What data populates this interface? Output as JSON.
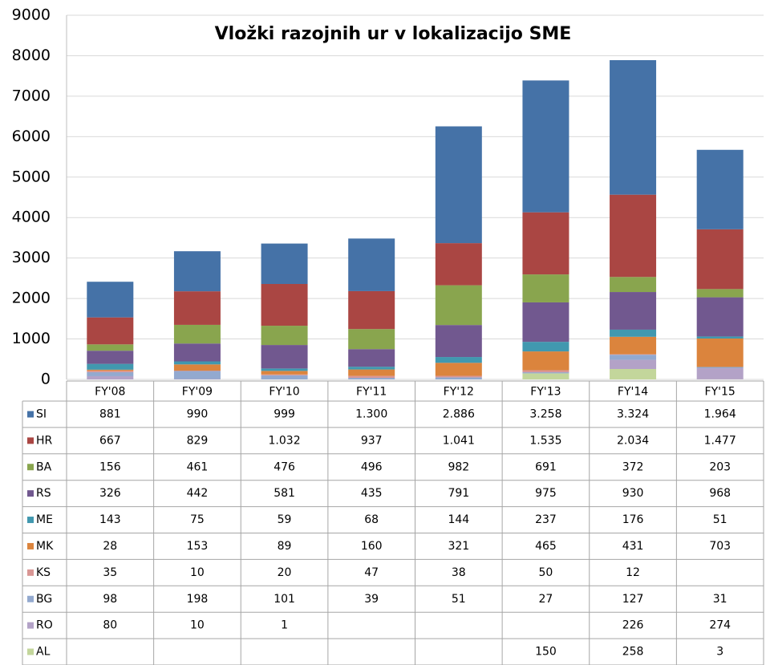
{
  "chart_data": {
    "type": "stacked_bar",
    "title": "Vložki razojnih ur v lokalizacijo SME",
    "categories": [
      "FY'08",
      "FY'09",
      "FY'10",
      "FY'11",
      "FY'12",
      "FY'13",
      "FY'14",
      "FY'15"
    ],
    "series": [
      {
        "name": "SI",
        "color": "#4572a7",
        "values": [
          881,
          990,
          999,
          1300,
          2886,
          3258,
          3324,
          1964
        ],
        "value_labels": [
          "881",
          "990",
          "999",
          "1.300",
          "2.886",
          "3.258",
          "3.324",
          "1.964"
        ]
      },
      {
        "name": "HR",
        "color": "#aa4643",
        "values": [
          667,
          829,
          1032,
          937,
          1041,
          1535,
          2034,
          1477
        ],
        "value_labels": [
          "667",
          "829",
          "1.032",
          "937",
          "1.041",
          "1.535",
          "2.034",
          "1.477"
        ]
      },
      {
        "name": "BA",
        "color": "#89a54e",
        "values": [
          156,
          461,
          476,
          496,
          982,
          691,
          372,
          203
        ]
      },
      {
        "name": "RS",
        "color": "#71588f",
        "values": [
          326,
          442,
          581,
          435,
          791,
          975,
          930,
          968
        ]
      },
      {
        "name": "ME",
        "color": "#4198af",
        "values": [
          143,
          75,
          59,
          68,
          144,
          237,
          176,
          51
        ]
      },
      {
        "name": "MK",
        "color": "#db843d",
        "values": [
          28,
          153,
          89,
          160,
          321,
          465,
          431,
          703
        ]
      },
      {
        "name": "KS",
        "color": "#d99694",
        "values": [
          35,
          10,
          20,
          47,
          38,
          50,
          12,
          null
        ]
      },
      {
        "name": "BG",
        "color": "#93a9cf",
        "values": [
          98,
          198,
          101,
          39,
          51,
          27,
          127,
          31
        ]
      },
      {
        "name": "RO",
        "color": "#b3a2c7",
        "values": [
          80,
          10,
          1,
          null,
          null,
          null,
          226,
          274
        ]
      },
      {
        "name": "AL",
        "color": "#c3d69b",
        "values": [
          null,
          null,
          null,
          null,
          null,
          150,
          258,
          3
        ]
      }
    ],
    "ylim": [
      0,
      9000
    ],
    "yticks": [
      0,
      1000,
      2000,
      3000,
      4000,
      5000,
      6000,
      7000,
      8000,
      9000
    ],
    "grid": true
  }
}
